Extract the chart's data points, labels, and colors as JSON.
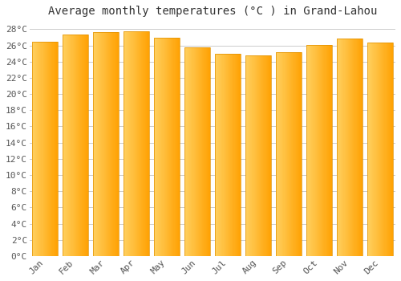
{
  "title": "Average monthly temperatures (°C ) in Grand-Lahou",
  "months": [
    "Jan",
    "Feb",
    "Mar",
    "Apr",
    "May",
    "Jun",
    "Jul",
    "Aug",
    "Sep",
    "Oct",
    "Nov",
    "Dec"
  ],
  "values": [
    26.5,
    27.3,
    27.6,
    27.7,
    26.9,
    25.8,
    25.0,
    24.8,
    25.2,
    26.1,
    26.8,
    26.4
  ],
  "bar_color_left": "#FFD060",
  "bar_color_right": "#FFA000",
  "bar_edge_color": "#E09000",
  "ylim": [
    0,
    29
  ],
  "yticks": [
    0,
    2,
    4,
    6,
    8,
    10,
    12,
    14,
    16,
    18,
    20,
    22,
    24,
    26,
    28
  ],
  "ytick_labels": [
    "0°C",
    "2°C",
    "4°C",
    "6°C",
    "8°C",
    "10°C",
    "12°C",
    "14°C",
    "16°C",
    "18°C",
    "20°C",
    "22°C",
    "24°C",
    "26°C",
    "28°C"
  ],
  "background_color": "#FFFFFF",
  "plot_bg_color": "#FFFFFF",
  "grid_color": "#CCCCCC",
  "title_fontsize": 10,
  "tick_fontsize": 8,
  "font_family": "monospace",
  "bar_width": 0.85
}
